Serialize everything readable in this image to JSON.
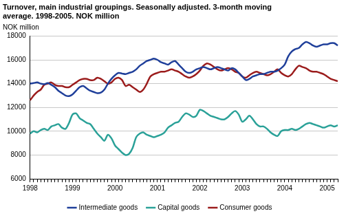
{
  "chart_data": {
    "type": "line",
    "title": [
      "Turnover, main industrial groupings. Seasonally adjusted. 3-month moving",
      "average. 1998-2005. NOK million"
    ],
    "ylabel": "NOK million",
    "categories": [
      "1998",
      null,
      null,
      null,
      null,
      null,
      null,
      null,
      null,
      null,
      null,
      null,
      "1999",
      null,
      null,
      null,
      null,
      null,
      null,
      null,
      null,
      null,
      null,
      null,
      "2000",
      null,
      null,
      null,
      null,
      null,
      null,
      null,
      null,
      null,
      null,
      null,
      "2001",
      null,
      null,
      null,
      null,
      null,
      null,
      null,
      null,
      null,
      null,
      null,
      "2002",
      null,
      null,
      null,
      null,
      null,
      null,
      null,
      null,
      null,
      null,
      null,
      "2003",
      null,
      null,
      null,
      null,
      null,
      null,
      null,
      null,
      null,
      null,
      null,
      "2004",
      null,
      null,
      null,
      null,
      null,
      null,
      null,
      null,
      null,
      null,
      null,
      "2005",
      null,
      null,
      null
    ],
    "series": [
      {
        "name": "Intermediate goods",
        "color": "#1f3f9a",
        "values": [
          14000,
          14050,
          14100,
          14000,
          13950,
          14050,
          13900,
          13700,
          13400,
          13200,
          13000,
          12950,
          13100,
          13400,
          13700,
          13800,
          13600,
          13400,
          13300,
          13200,
          13250,
          13500,
          14000,
          14400,
          14700,
          14900,
          14850,
          14800,
          14900,
          15000,
          15200,
          15500,
          15700,
          15900,
          16000,
          16100,
          16000,
          15800,
          15700,
          15600,
          15800,
          15900,
          15600,
          15300,
          15000,
          14900,
          15000,
          15200,
          15300,
          15400,
          15300,
          15200,
          15300,
          15400,
          15300,
          15200,
          15100,
          15300,
          15200,
          14900,
          14600,
          14300,
          14400,
          14600,
          14700,
          14800,
          14800,
          14900,
          15000,
          15000,
          15100,
          15300,
          15600,
          16300,
          16700,
          16900,
          17000,
          17300,
          17500,
          17400,
          17200,
          17100,
          17200,
          17300,
          17300,
          17400,
          17400,
          17200
        ]
      },
      {
        "name": "Capital goods",
        "color": "#2aa198",
        "values": [
          9800,
          10000,
          9900,
          10100,
          10200,
          10100,
          10400,
          10500,
          10600,
          10300,
          10200,
          10700,
          11400,
          11500,
          11100,
          10900,
          10700,
          10600,
          10200,
          9800,
          9500,
          9200,
          9700,
          9400,
          8800,
          8500,
          8200,
          8000,
          8100,
          8600,
          9500,
          9800,
          9900,
          9700,
          9600,
          9500,
          9600,
          9700,
          9900,
          10300,
          10500,
          10700,
          10800,
          11200,
          11500,
          11400,
          11200,
          11300,
          11800,
          11700,
          11500,
          11300,
          11200,
          11100,
          11000,
          11000,
          11200,
          11500,
          11700,
          11400,
          10800,
          11000,
          11300,
          11000,
          10600,
          10400,
          10400,
          10200,
          9900,
          9700,
          9600,
          10000,
          10100,
          10100,
          10200,
          10100,
          10200,
          10400,
          10600,
          10700,
          10600,
          10500,
          10400,
          10300,
          10400,
          10500,
          10400,
          10500
        ]
      },
      {
        "name": "Consumer goods",
        "color": "#9b1c1c",
        "values": [
          12600,
          13000,
          13300,
          13500,
          13900,
          14000,
          14100,
          13900,
          13800,
          13800,
          13700,
          13700,
          13900,
          14100,
          14300,
          14400,
          14400,
          14300,
          14300,
          14500,
          14400,
          14200,
          14000,
          14100,
          14400,
          14500,
          14300,
          13800,
          13900,
          13700,
          13500,
          13300,
          13500,
          14000,
          14600,
          14800,
          14900,
          15000,
          15000,
          15100,
          15200,
          15100,
          15000,
          14800,
          14600,
          14500,
          14600,
          14800,
          15100,
          15500,
          15700,
          15600,
          15400,
          15200,
          15100,
          15200,
          15300,
          15200,
          15000,
          14900,
          14600,
          14500,
          14700,
          14900,
          15000,
          14900,
          14800,
          14700,
          14800,
          15000,
          15200,
          14900,
          14700,
          14600,
          14800,
          15200,
          15500,
          15400,
          15300,
          15100,
          15000,
          15000,
          14900,
          14800,
          14600,
          14400,
          14300,
          14200
        ]
      }
    ],
    "ylim": [
      6000,
      18000
    ],
    "yticks": [
      6000,
      8000,
      10000,
      12000,
      14000,
      16000,
      18000
    ],
    "grid": true,
    "legend": "bottom"
  }
}
